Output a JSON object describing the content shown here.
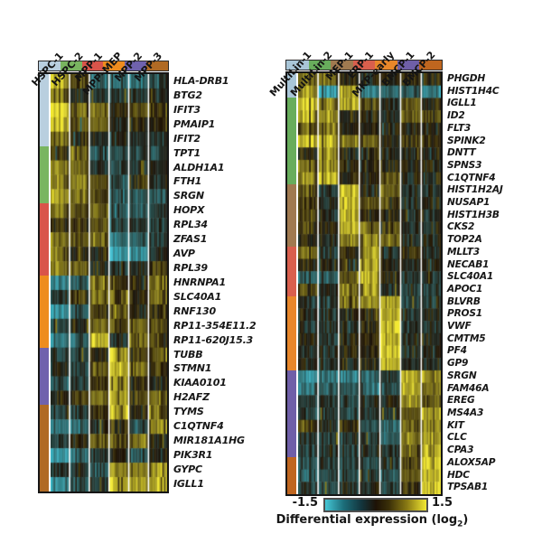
{
  "figure": {
    "legend": {
      "min_label": "-1.5",
      "max_label": "1.5",
      "caption_pre": "Differential expression (log",
      "caption_sub": "2",
      "caption_post": ")"
    }
  },
  "chart_data": [
    {
      "type": "heatmap",
      "panel": "left",
      "value_range": [
        -1.5,
        1.5
      ],
      "colormap": {
        "low": "#3ebed0",
        "mid": "#1d1206",
        "high": "#f2e832"
      },
      "columns": [
        {
          "label": "HSPC-1",
          "color": "#b9cfdf"
        },
        {
          "label": "HSPC-2",
          "color": "#79b560"
        },
        {
          "label": "MPP-1",
          "color": "#d9544a"
        },
        {
          "label": "MPP–MEP",
          "color": "#ee8c1e"
        },
        {
          "label": "MPP-2",
          "color": "#6f62ad"
        },
        {
          "label": "MPP-3",
          "color": "#b06a24"
        }
      ],
      "row_clusters": [
        {
          "color": "#b9cfdf",
          "rows": 5
        },
        {
          "color": "#79b560",
          "rows": 4
        },
        {
          "color": "#d9544a",
          "rows": 5
        },
        {
          "color": "#ee8c1e",
          "rows": 5
        },
        {
          "color": "#6f62ad",
          "rows": 4
        },
        {
          "color": "#b06a24",
          "rows": 6
        }
      ],
      "rows": [
        {
          "gene": "HLA-DRB1",
          "values": [
            0.9,
            0.25,
            -0.7,
            -0.8,
            -0.7,
            -0.5
          ]
        },
        {
          "gene": "BTG2",
          "values": [
            0.5,
            -0.1,
            -0.2,
            -0.3,
            -0.2,
            -0.2
          ]
        },
        {
          "gene": "IFIT3",
          "values": [
            1.3,
            0.45,
            0.5,
            0.0,
            0.25,
            0.2
          ]
        },
        {
          "gene": "PMAIP1",
          "values": [
            1.1,
            0.3,
            0.45,
            -0.1,
            0.1,
            0.1
          ]
        },
        {
          "gene": "IFIT2",
          "values": [
            0.45,
            0.1,
            -0.1,
            -0.15,
            -0.1,
            -0.3
          ]
        },
        {
          "gene": "TPT1",
          "values": [
            0.1,
            0.5,
            -0.4,
            -0.5,
            -0.3,
            -0.6
          ]
        },
        {
          "gene": "ALDH1A1",
          "values": [
            0.6,
            0.45,
            -0.2,
            -0.5,
            -0.3,
            -0.2
          ]
        },
        {
          "gene": "FTH1",
          "values": [
            0.6,
            0.7,
            0.3,
            -0.4,
            0.1,
            -0.3
          ]
        },
        {
          "gene": "SRGN",
          "values": [
            0.9,
            0.6,
            0.25,
            -0.6,
            -0.4,
            -0.6
          ]
        },
        {
          "gene": "HOPX",
          "values": [
            0.5,
            0.35,
            0.5,
            -0.6,
            -0.4,
            -0.3
          ]
        },
        {
          "gene": "RPL34",
          "values": [
            0.0,
            0.2,
            0.3,
            -0.5,
            -0.25,
            -0.3
          ]
        },
        {
          "gene": "ZFAS1",
          "values": [
            0.5,
            0.4,
            0.5,
            -1.0,
            -0.5,
            -0.4
          ]
        },
        {
          "gene": "AVP",
          "values": [
            0.45,
            0.0,
            -0.1,
            -1.3,
            -0.9,
            -0.25
          ]
        },
        {
          "gene": "RPL39",
          "values": [
            0.5,
            0.4,
            -0.1,
            -0.3,
            -0.2,
            0.2
          ]
        },
        {
          "gene": "HNRNPA1",
          "values": [
            -0.8,
            -0.5,
            0.5,
            0.35,
            0.1,
            0.6
          ]
        },
        {
          "gene": "SLC40A1",
          "values": [
            -0.2,
            0.2,
            0.6,
            0.4,
            0.1,
            0.4
          ]
        },
        {
          "gene": "RNF130",
          "values": [
            -1.0,
            -0.6,
            0.2,
            0.5,
            0.0,
            0.1
          ]
        },
        {
          "gene": "RP11-354E11.2",
          "values": [
            -0.3,
            -0.1,
            0.5,
            0.3,
            0.4,
            0.3
          ]
        },
        {
          "gene": "RP11-620J15.3",
          "values": [
            -0.8,
            -0.5,
            1.0,
            -0.3,
            0.4,
            0.2
          ]
        },
        {
          "gene": "TUBB",
          "values": [
            -0.3,
            -0.3,
            0.0,
            1.2,
            0.2,
            0.4
          ]
        },
        {
          "gene": "STMN1",
          "values": [
            -0.2,
            -0.3,
            0.4,
            1.2,
            0.5,
            0.1
          ]
        },
        {
          "gene": "KIAA0101",
          "values": [
            -0.4,
            -0.3,
            0.2,
            1.1,
            0.1,
            -0.1
          ]
        },
        {
          "gene": "H2AFZ",
          "values": [
            0.0,
            0.2,
            0.5,
            1.1,
            0.3,
            0.4
          ]
        },
        {
          "gene": "TYMS",
          "values": [
            -0.3,
            -0.2,
            0.2,
            1.0,
            0.0,
            0.5
          ]
        },
        {
          "gene": "C1QTNF4",
          "values": [
            -0.8,
            -0.7,
            -0.2,
            0.2,
            -0.4,
            0.8
          ]
        },
        {
          "gene": "MIR181A1HG",
          "values": [
            -0.3,
            0.0,
            0.4,
            0.45,
            0.5,
            0.0
          ]
        },
        {
          "gene": "PIK3R1",
          "values": [
            -0.9,
            -0.6,
            -0.3,
            0.0,
            -0.4,
            -0.2
          ]
        },
        {
          "gene": "GYPC",
          "values": [
            -0.2,
            -0.1,
            -0.4,
            0.8,
            0.6,
            0.9
          ]
        },
        {
          "gene": "IGLL1",
          "values": [
            -0.9,
            -0.4,
            -0.2,
            1.2,
            0.8,
            1.0
          ]
        }
      ]
    },
    {
      "type": "heatmap",
      "panel": "right",
      "value_range": [
        -1.5,
        1.5
      ],
      "colormap": {
        "low": "#3ebed0",
        "mid": "#1d1206",
        "high": "#f2e832"
      },
      "columns": [
        {
          "label": "MultiLin-1",
          "color": "#a9c6d8"
        },
        {
          "label": "MultiLin-2",
          "color": "#68ad5c"
        },
        {
          "label": "MEP-1",
          "color": "#a07a50"
        },
        {
          "label": "ERP-1",
          "color": "#d95f4d"
        },
        {
          "label": "MKP-early",
          "color": "#e8872a"
        },
        {
          "label": "BMCP-1",
          "color": "#6f5fa8"
        },
        {
          "label": "BMCP-2",
          "color": "#bf661f"
        }
      ],
      "row_clusters": [
        {
          "color": "#a9c6d8",
          "rows": 2
        },
        {
          "color": "#68ad5c",
          "rows": 7
        },
        {
          "color": "#a07a50",
          "rows": 5
        },
        {
          "color": "#d95f4d",
          "rows": 4
        },
        {
          "color": "#e8872a",
          "rows": 6
        },
        {
          "color": "#6f5fa8",
          "rows": 7
        },
        {
          "color": "#bf661f",
          "rows": 3
        }
      ],
      "rows": [
        {
          "gene": "PHGDH",
          "values": [
            0.5,
            0.4,
            0.0,
            -0.1,
            0.0,
            0.2,
            0.0
          ]
        },
        {
          "gene": "HIST1H4C",
          "values": [
            0.8,
            -1.2,
            0.9,
            -0.9,
            -0.5,
            -0.4,
            -0.9
          ]
        },
        {
          "gene": "IGLL1",
          "values": [
            1.3,
            0.6,
            0.9,
            0.2,
            -0.1,
            0.4,
            0.0
          ]
        },
        {
          "gene": "ID2",
          "values": [
            1.0,
            0.8,
            0.0,
            0.0,
            -0.1,
            0.4,
            0.3
          ]
        },
        {
          "gene": "FLT3",
          "values": [
            0.4,
            0.6,
            -0.1,
            0.0,
            0.0,
            0.0,
            0.0
          ]
        },
        {
          "gene": "SPINK2",
          "values": [
            1.1,
            1.0,
            0.5,
            0.4,
            0.0,
            0.2,
            0.2
          ]
        },
        {
          "gene": "DNTT",
          "values": [
            0.1,
            0.9,
            -0.1,
            0.0,
            -0.1,
            0.0,
            0.0
          ]
        },
        {
          "gene": "SPNS3",
          "values": [
            0.5,
            0.8,
            0.0,
            0.0,
            0.0,
            0.0,
            0.0
          ]
        },
        {
          "gene": "C1QTNF4",
          "values": [
            0.8,
            1.2,
            0.0,
            0.0,
            0.3,
            0.0,
            0.0
          ]
        },
        {
          "gene": "HIST1H2AJ",
          "values": [
            0.4,
            -0.2,
            1.1,
            0.0,
            0.4,
            -0.1,
            -0.2
          ]
        },
        {
          "gene": "NUSAP1",
          "values": [
            0.2,
            -0.1,
            1.0,
            0.3,
            0.3,
            -0.1,
            -0.1
          ]
        },
        {
          "gene": "HIST1H3B",
          "values": [
            0.3,
            -0.1,
            1.1,
            0.0,
            0.0,
            -0.1,
            -0.1
          ]
        },
        {
          "gene": "CKS2",
          "values": [
            0.3,
            0.0,
            1.0,
            0.4,
            0.3,
            -0.1,
            -0.1
          ]
        },
        {
          "gene": "TOP2A",
          "values": [
            0.0,
            -0.1,
            0.6,
            0.8,
            0.4,
            -0.1,
            -0.1
          ]
        },
        {
          "gene": "MLLT3",
          "values": [
            0.4,
            -0.2,
            0.1,
            0.9,
            -0.1,
            0.2,
            -0.1
          ]
        },
        {
          "gene": "NECAB1",
          "values": [
            0.0,
            -0.1,
            0.0,
            1.0,
            0.0,
            -0.1,
            0.0
          ]
        },
        {
          "gene": "SLC40A1",
          "values": [
            -0.6,
            -0.5,
            0.4,
            0.9,
            0.0,
            -0.2,
            -0.2
          ]
        },
        {
          "gene": "APOC1",
          "values": [
            0.3,
            -0.2,
            0.5,
            1.0,
            -0.2,
            -0.2,
            -0.3
          ]
        },
        {
          "gene": "BLVRB",
          "values": [
            -0.2,
            -0.3,
            0.5,
            0.6,
            0.9,
            -0.3,
            -0.3
          ]
        },
        {
          "gene": "PROS1",
          "values": [
            -0.1,
            -0.2,
            0.0,
            0.0,
            1.0,
            -0.1,
            -0.1
          ]
        },
        {
          "gene": "VWF",
          "values": [
            -0.2,
            -0.2,
            -0.1,
            0.0,
            1.1,
            -0.2,
            -0.2
          ]
        },
        {
          "gene": "CMTM5",
          "values": [
            -0.1,
            -0.2,
            0.0,
            0.0,
            1.1,
            -0.1,
            -0.2
          ]
        },
        {
          "gene": "PF4",
          "values": [
            -0.2,
            -0.1,
            0.0,
            0.1,
            1.2,
            -0.2,
            -0.2
          ]
        },
        {
          "gene": "GP9",
          "values": [
            -0.1,
            -0.2,
            0.0,
            0.0,
            1.0,
            -0.1,
            -0.1
          ]
        },
        {
          "gene": "SRGN",
          "values": [
            -0.9,
            -0.6,
            -0.8,
            -0.6,
            -0.3,
            1.1,
            0.8
          ]
        },
        {
          "gene": "FAM46A",
          "values": [
            -0.7,
            -0.5,
            -0.5,
            -0.7,
            -0.4,
            0.9,
            0.6
          ]
        },
        {
          "gene": "EREG",
          "values": [
            -0.2,
            -0.2,
            -0.3,
            -0.2,
            -0.1,
            0.8,
            0.4
          ]
        },
        {
          "gene": "MS4A3",
          "values": [
            -0.3,
            -0.2,
            -0.4,
            -0.3,
            -0.2,
            0.5,
            0.9
          ]
        },
        {
          "gene": "KIT",
          "values": [
            0.3,
            -0.1,
            0.2,
            -0.4,
            -0.6,
            0.5,
            0.8
          ]
        },
        {
          "gene": "CLC",
          "values": [
            -0.2,
            -0.3,
            -0.2,
            -0.3,
            -0.5,
            0.6,
            0.9
          ]
        },
        {
          "gene": "CPA3",
          "values": [
            -0.3,
            -0.2,
            -0.3,
            -0.2,
            -0.2,
            0.4,
            0.9
          ]
        },
        {
          "gene": "ALOX5AP",
          "values": [
            -0.4,
            -0.3,
            -0.3,
            -0.4,
            -0.3,
            0.3,
            1.2
          ]
        },
        {
          "gene": "HDC",
          "values": [
            -0.5,
            -0.4,
            -0.3,
            -0.3,
            -0.4,
            0.3,
            1.1
          ]
        },
        {
          "gene": "TPSAB1",
          "values": [
            -0.3,
            -0.3,
            -0.2,
            -0.2,
            -0.3,
            0.2,
            1.3
          ]
        }
      ]
    }
  ]
}
